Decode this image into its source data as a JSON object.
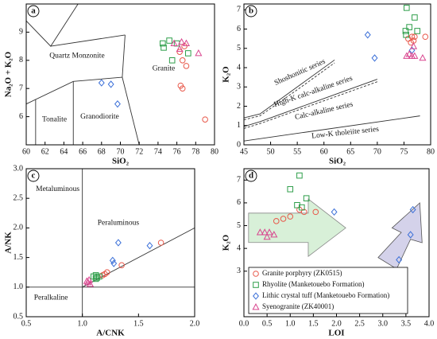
{
  "chart_data": [
    {
      "type": "scatter",
      "panel": "a",
      "x_label": "SiO₂",
      "y_label": "Na₂O + K₂O",
      "xlim": [
        60,
        80
      ],
      "ylim": [
        5,
        10
      ],
      "xticks": [
        60,
        62,
        64,
        66,
        68,
        70,
        72,
        74,
        76,
        78,
        80
      ],
      "yticks": [
        6,
        7,
        8,
        9
      ],
      "annotations": [
        "Quartz Monzonite",
        "Granite",
        "Tonalite",
        "Granodiorite"
      ],
      "series": [
        {
          "marker": "circle",
          "color": "#e8584a",
          "x": [
            76.3,
            76.8,
            76.6,
            77.0,
            76.4,
            76.6,
            79.0
          ],
          "values": [
            8.3,
            8.5,
            8.0,
            7.8,
            7.1,
            7.0,
            5.9
          ]
        },
        {
          "marker": "square",
          "color": "#2e9e4a",
          "x": [
            74.5,
            74.6,
            75.2,
            75.5,
            76.0,
            77.2
          ],
          "values": [
            8.6,
            8.45,
            8.7,
            8.0,
            8.6,
            8.25
          ]
        },
        {
          "marker": "diamond",
          "color": "#3a6fd8",
          "x": [
            68.0,
            69.0,
            69.7
          ],
          "values": [
            7.2,
            7.15,
            6.45
          ]
        },
        {
          "marker": "triangle",
          "color": "#d9468f",
          "x": [
            75.7,
            76.5,
            77.0,
            76.3,
            78.3
          ],
          "values": [
            8.6,
            8.65,
            8.6,
            8.4,
            8.25
          ]
        }
      ]
    },
    {
      "type": "scatter",
      "panel": "b",
      "x_label": "SiO₂",
      "y_label": "K₂O",
      "xlim": [
        45,
        80
      ],
      "ylim": [
        0,
        7.3
      ],
      "xticks": [
        45,
        50,
        55,
        60,
        65,
        70,
        75,
        80
      ],
      "yticks": [
        0,
        1,
        2,
        3,
        4,
        5,
        6,
        7
      ],
      "annotations": [
        "Shoshonitic series",
        "High-K calc-alkaline series",
        "Calc-alkaline series",
        "Low-K tholeiite series"
      ],
      "series": [
        {
          "marker": "circle",
          "color": "#e8584a",
          "x": [
            76.5,
            76.3,
            77.0,
            79.0,
            76.8,
            75.8
          ],
          "values": [
            5.6,
            5.3,
            5.6,
            5.6,
            5.4,
            5.5
          ]
        },
        {
          "marker": "square",
          "color": "#2e9e4a",
          "x": [
            75.5,
            75.3,
            75.4,
            77.0,
            77.5,
            76.0
          ],
          "values": [
            7.1,
            5.9,
            5.7,
            6.6,
            5.9,
            6.1
          ]
        },
        {
          "marker": "diamond",
          "color": "#3a6fd8",
          "x": [
            68.2,
            69.5,
            76.5
          ],
          "values": [
            5.7,
            4.5,
            4.9
          ]
        },
        {
          "marker": "triangle",
          "color": "#d9468f",
          "x": [
            75.5,
            76.0,
            76.5,
            77.0,
            78.5,
            76.8
          ],
          "values": [
            4.6,
            4.7,
            4.6,
            4.6,
            4.5,
            5.1
          ]
        }
      ]
    },
    {
      "type": "scatter",
      "panel": "c",
      "x_label": "A/CNK",
      "y_label": "A/NK",
      "xlim": [
        0.5,
        2.0
      ],
      "ylim": [
        0.5,
        3.0
      ],
      "xticks": [
        0.5,
        {
          "value": 1,
          "label": "1.0"
        },
        1.5,
        {
          "value": 2,
          "label": "2.0"
        }
      ],
      "yticks": [
        0.5,
        {
          "value": 1,
          "label": "1.0"
        },
        1.5,
        {
          "value": 2,
          "label": "2.0"
        },
        2.5,
        {
          "value": 3,
          "label": "3.0"
        }
      ],
      "annotations": [
        "Metaluminous",
        "Peraluminous",
        "Peralkaline"
      ],
      "series": [
        {
          "marker": "circle",
          "color": "#e8584a",
          "x": [
            1.35,
            1.7,
            1.2,
            1.22,
            1.18
          ],
          "values": [
            1.37,
            1.75,
            1.22,
            1.25,
            1.2
          ]
        },
        {
          "marker": "square",
          "color": "#2e9e4a",
          "x": [
            1.1,
            1.12,
            1.13,
            1.15,
            1.12
          ],
          "values": [
            1.18,
            1.2,
            1.16,
            1.18,
            1.14
          ]
        },
        {
          "marker": "diamond",
          "color": "#3a6fd8",
          "x": [
            1.32,
            1.6,
            1.27,
            1.28
          ],
          "values": [
            1.75,
            1.7,
            1.45,
            1.4
          ]
        },
        {
          "marker": "triangle",
          "color": "#d9468f",
          "x": [
            1.05,
            1.07,
            1.04,
            1.06
          ],
          "values": [
            1.08,
            1.05,
            1.1,
            1.12
          ]
        }
      ]
    },
    {
      "type": "scatter",
      "panel": "d",
      "x_label": "LOI",
      "y_label": "K₂O",
      "xlim": [
        0,
        4
      ],
      "ylim": [
        1,
        7.5
      ],
      "xticks": [
        {
          "value": 0,
          "label": "0.0"
        },
        0.5,
        {
          "value": 1,
          "label": "1.0"
        },
        1.5,
        {
          "value": 2,
          "label": "2.0"
        },
        2.5,
        {
          "value": 3,
          "label": "3.0"
        },
        3.5,
        {
          "value": 4,
          "label": "4.0"
        }
      ],
      "yticks": [
        3,
        4,
        5,
        6,
        7
      ],
      "series": [
        {
          "name": "Granite porphyry (ZK0515)",
          "marker": "circle",
          "color": "#e8584a",
          "x": [
            0.7,
            0.85,
            1.0,
            1.2,
            1.3,
            1.55
          ],
          "values": [
            5.2,
            5.3,
            5.4,
            5.7,
            5.6,
            5.6
          ]
        },
        {
          "name": "Rhyolite (Manketouebo Formation)",
          "marker": "square",
          "color": "#2e9e4a",
          "x": [
            1.0,
            1.2,
            1.35,
            1.15,
            1.25
          ],
          "values": [
            6.6,
            7.2,
            6.2,
            5.9,
            5.8
          ]
        },
        {
          "name": "Lithic crystal tuff (Manketouebo Formation)",
          "marker": "diamond",
          "color": "#3a6fd8",
          "x": [
            1.95,
            3.65,
            3.6,
            3.35
          ],
          "values": [
            5.6,
            5.7,
            4.6,
            3.5
          ]
        },
        {
          "name": "Syenogranite (ZK40001)",
          "marker": "triangle",
          "color": "#d9468f",
          "x": [
            0.35,
            0.45,
            0.5,
            0.55,
            0.65
          ],
          "values": [
            4.7,
            4.7,
            4.5,
            4.7,
            4.6
          ]
        }
      ]
    }
  ]
}
